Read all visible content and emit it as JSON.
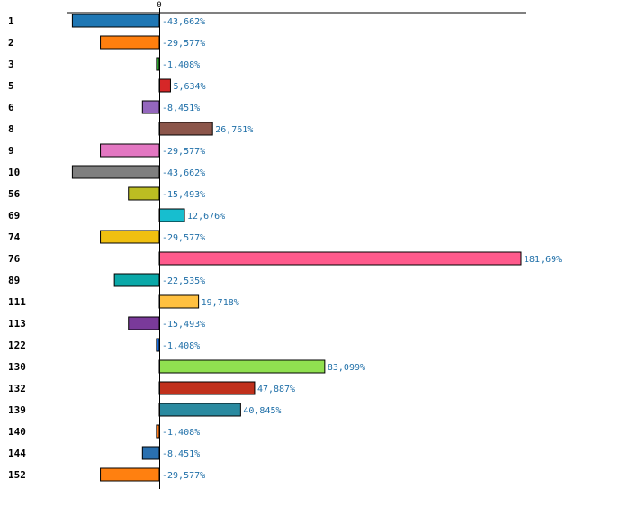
{
  "chart_data": {
    "type": "bar",
    "orientation": "horizontal",
    "zero_tick_label": "0",
    "categories": [
      "1",
      "2",
      "3",
      "5",
      "6",
      "8",
      "9",
      "10",
      "56",
      "69",
      "74",
      "76",
      "89",
      "111",
      "113",
      "122",
      "130",
      "132",
      "139",
      "140",
      "144",
      "152"
    ],
    "values": [
      -43.662,
      -29.577,
      -1.408,
      5.634,
      -8.451,
      26.761,
      -29.577,
      -43.662,
      -15.493,
      12.676,
      -29.577,
      181.69,
      -22.535,
      19.718,
      -15.493,
      -1.408,
      83.099,
      47.887,
      40.845,
      -1.408,
      -8.451,
      -29.577
    ],
    "value_labels": [
      "-43,662%",
      "-29,577%",
      "-1,408%",
      "5,634%",
      "-8,451%",
      "26,761%",
      "-29,577%",
      "-43,662%",
      "-15,493%",
      "12,676%",
      "-29,577%",
      "181,69%",
      "-22,535%",
      "19,718%",
      "-15,493%",
      "-1,408%",
      "83,099%",
      "47,887%",
      "40,845%",
      "-1,408%",
      "-8,451%",
      "-29,577%"
    ],
    "colors": [
      "#1f77b4",
      "#ff7f0e",
      "#2ca02c",
      "#d62728",
      "#9467bd",
      "#8c564b",
      "#e377c2",
      "#7f7f7f",
      "#bcbd22",
      "#17becf",
      "#f0c010",
      "#ff5a8c",
      "#0aa8a8",
      "#ffc040",
      "#7a3a9a",
      "#1a6ee0",
      "#90e050",
      "#c0301c",
      "#2a8aa0",
      "#ff7a1a",
      "#2a70b0",
      "#ff8010"
    ],
    "xlim": [
      -45,
      185
    ],
    "title": "",
    "xlabel": "",
    "ylabel": ""
  }
}
